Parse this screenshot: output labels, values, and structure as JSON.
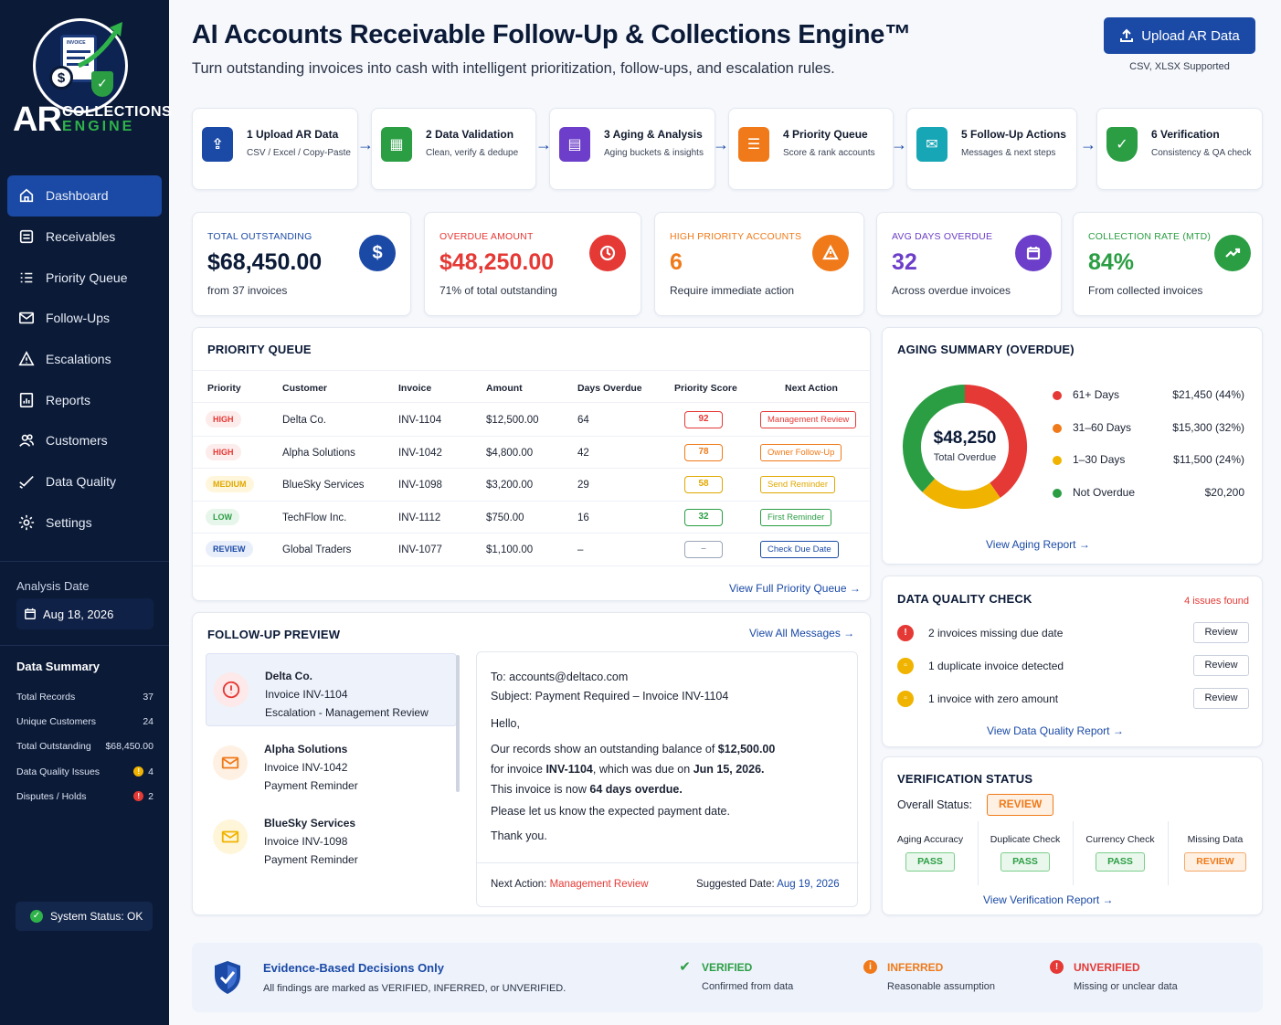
{
  "app": {
    "title": "AI Accounts Receivable Follow-Up & Collections Engine™",
    "subtitle": "Turn outstanding invoices into cash with intelligent prioritization, follow-ups, and escalation rules.",
    "upload_button": "Upload AR Data",
    "upload_note": "CSV, XLSX Supported"
  },
  "logo": {
    "ar": "AR",
    "collections": "COLLECTIONS",
    "engine": "ENGINE",
    "doc_label": "INVOICE"
  },
  "sidebar": {
    "items": [
      {
        "label": "Dashboard",
        "icon": "home-icon"
      },
      {
        "label": "Receivables",
        "icon": "receivables-icon"
      },
      {
        "label": "Priority Queue",
        "icon": "list-icon"
      },
      {
        "label": "Follow-Ups",
        "icon": "mail-icon"
      },
      {
        "label": "Escalations",
        "icon": "warning-icon"
      },
      {
        "label": "Reports",
        "icon": "report-icon"
      },
      {
        "label": "Customers",
        "icon": "users-icon"
      },
      {
        "label": "Data Quality",
        "icon": "check-icon"
      },
      {
        "label": "Settings",
        "icon": "gear-icon"
      }
    ],
    "active": "Dashboard",
    "analysis_label": "Analysis Date",
    "analysis_date": "Aug 18, 2026",
    "data_summary": {
      "title": "Data Summary",
      "rows": [
        {
          "label": "Total Records",
          "value": "37"
        },
        {
          "label": "Unique Customers",
          "value": "24"
        },
        {
          "label": "Total Outstanding",
          "value": "$68,450.00"
        },
        {
          "label": "Data Quality Issues",
          "value": "4"
        },
        {
          "label": "Disputes / Holds",
          "value": "2"
        }
      ]
    },
    "system_status": "System Status: OK"
  },
  "steps": [
    {
      "title": "1 Upload AR Data",
      "desc": "CSV / Excel / Copy-Paste",
      "color": "#1b4aa6",
      "icon": "upload-doc-icon"
    },
    {
      "title": "2 Data Validation",
      "desc": "Clean, verify & dedupe",
      "color": "#2b9e44",
      "icon": "spreadsheet-icon"
    },
    {
      "title": "3 Aging & Analysis",
      "desc": "Aging buckets & insights",
      "color": "#6c3ec9",
      "icon": "calendar-icon"
    },
    {
      "title": "4 Priority Queue",
      "desc": "Score & rank accounts",
      "color": "#f07a1a",
      "icon": "list-icon"
    },
    {
      "title": "5 Follow-Up Actions",
      "desc": "Messages & next steps",
      "color": "#17a6b5",
      "icon": "envelope-icon"
    },
    {
      "title": "6 Verification",
      "desc": "Consistency & QA check",
      "color": "#2b9e44",
      "icon": "shield-check-icon"
    }
  ],
  "kpis": [
    {
      "label": "TOTAL OUTSTANDING",
      "value": "$68,450.00",
      "sub": "from 37 invoices",
      "color": "#1b4aa6",
      "value_color": "#0b1a37",
      "icon": "dollar-icon"
    },
    {
      "label": "OVERDUE AMOUNT",
      "value": "$48,250.00",
      "sub": "71% of total outstanding",
      "color": "#e53935",
      "value_color": "#e53935",
      "icon": "clock-icon"
    },
    {
      "label": "HIGH PRIORITY ACCOUNTS",
      "value": "6",
      "sub": "Require immediate action",
      "color": "#f07a1a",
      "value_color": "#f07a1a",
      "icon": "alert-icon"
    },
    {
      "label": "AVG DAYS OVERDUE",
      "value": "32",
      "sub": "Across overdue invoices",
      "color": "#6c3ec9",
      "value_color": "#6c3ec9",
      "icon": "calendar-icon"
    },
    {
      "label": "COLLECTION RATE (MTD)",
      "value": "84%",
      "sub": "From collected invoices",
      "color": "#2b9e44",
      "value_color": "#2b9e44",
      "icon": "trend-up-icon"
    }
  ],
  "priority_queue": {
    "title": "PRIORITY QUEUE",
    "columns": [
      "Priority",
      "Customer",
      "Invoice",
      "Amount",
      "Days Overdue",
      "Priority Score",
      "Next Action"
    ],
    "rows": [
      {
        "priority": "HIGH",
        "customer": "Delta Co.",
        "invoice": "INV-1104",
        "amount": "$12,500.00",
        "days": "64",
        "score": "92",
        "action": "Management Review",
        "p_color": "#e53935",
        "p_bg": "#fdecec",
        "s_color": "#e53935",
        "a_color": "#e53935"
      },
      {
        "priority": "HIGH",
        "customer": "Alpha Solutions",
        "invoice": "INV-1042",
        "amount": "$4,800.00",
        "days": "42",
        "score": "78",
        "action": "Owner Follow-Up",
        "p_color": "#e53935",
        "p_bg": "#fdecec",
        "s_color": "#f07a1a",
        "a_color": "#f07a1a"
      },
      {
        "priority": "MEDIUM",
        "customer": "BlueSky Services",
        "invoice": "INV-1098",
        "amount": "$3,200.00",
        "days": "29",
        "score": "58",
        "action": "Send Reminder",
        "p_color": "#e0a800",
        "p_bg": "#fff6dc",
        "s_color": "#e0a800",
        "a_color": "#e0a800"
      },
      {
        "priority": "LOW",
        "customer": "TechFlow Inc.",
        "invoice": "INV-1112",
        "amount": "$750.00",
        "days": "16",
        "score": "32",
        "action": "First Reminder",
        "p_color": "#2b9e44",
        "p_bg": "#e7f6ea",
        "s_color": "#2b9e44",
        "a_color": "#2b9e44"
      },
      {
        "priority": "REVIEW",
        "customer": "Global Traders",
        "invoice": "INV-1077",
        "amount": "$1,100.00",
        "days": "–",
        "score": "–",
        "action": "Check Due Date",
        "p_color": "#1b4aa6",
        "p_bg": "#e8eefa",
        "s_color": "#9aa5b8",
        "a_color": "#1b4aa6"
      }
    ],
    "link": "View Full Priority Queue →"
  },
  "aging": {
    "title": "AGING SUMMARY (OVERDUE)",
    "total": "$48,250",
    "total_label": "Total Overdue",
    "buckets": [
      {
        "name": "61+ Days",
        "value": "$21,450 (44%)",
        "pct": 44,
        "color": "#e53935"
      },
      {
        "name": "31–60 Days",
        "value": "$15,300 (32%)",
        "pct": 32,
        "color": "#f07a1a"
      },
      {
        "name": "1–30 Days",
        "value": "$11,500 (24%)",
        "pct": 24,
        "color": "#f0b400"
      },
      {
        "name": "Not Overdue",
        "value": "$20,200",
        "pct": 0,
        "color": "#2b9e44"
      }
    ],
    "link": "View Aging Report →"
  },
  "followup": {
    "title": "FOLLOW-UP PREVIEW",
    "link": "View All Messages →",
    "items": [
      {
        "name": "Delta Co.",
        "invoice": "Invoice INV-1104",
        "type": "Escalation - Management Review",
        "icon": "alert-circle-icon",
        "color": "#e53935"
      },
      {
        "name": "Alpha Solutions",
        "invoice": "Invoice INV-1042",
        "type": "Payment Reminder",
        "icon": "envelope-icon",
        "color": "#f07a1a"
      },
      {
        "name": "BlueSky Services",
        "invoice": "Invoice INV-1098",
        "type": "Payment Reminder",
        "icon": "envelope-icon",
        "color": "#f0b400"
      }
    ],
    "email": {
      "to": "To: accounts@deltaco.com",
      "subject": "Subject: Payment Required – Invoice INV-1104",
      "greeting": "Hello,",
      "l1_a": "Our records show an outstanding balance of ",
      "l1_b": "$12,500.00",
      "l2_a": "for invoice ",
      "l2_b": "INV-1104",
      "l2_c": ", which was due on ",
      "l2_d": "Jun 15, 2026.",
      "l3_a": "This invoice is now ",
      "l3_b": "64 days overdue.",
      "l4": "Please let us know the expected payment date.",
      "l5": "Thank you.",
      "next_label": "Next Action:",
      "next_value": "Management Review",
      "date_label": "Suggested Date:",
      "date_value": "Aug 19, 2026"
    }
  },
  "data_quality": {
    "title": "DATA QUALITY CHECK",
    "issues": "4 issues found",
    "rows": [
      {
        "text": "2 invoices missing due date",
        "button": "Review",
        "color": "#e53935",
        "icon": "alert-icon"
      },
      {
        "text": "1 duplicate invoice detected",
        "button": "Review",
        "color": "#f0b400",
        "icon": "copy-icon"
      },
      {
        "text": "1 invoice with zero amount",
        "button": "Review",
        "color": "#f0b400",
        "icon": "copy-icon"
      }
    ],
    "link": "View Data Quality Report →"
  },
  "verification": {
    "title": "VERIFICATION STATUS",
    "overall_label": "Overall Status:",
    "overall": "REVIEW",
    "checks": [
      {
        "label": "Aging Accuracy",
        "status": "PASS"
      },
      {
        "label": "Duplicate Check",
        "status": "PASS"
      },
      {
        "label": "Currency Check",
        "status": "PASS"
      },
      {
        "label": "Missing Data",
        "status": "REVIEW"
      }
    ],
    "link": "View Verification Report →"
  },
  "evidence": {
    "title": "Evidence-Based Decisions Only",
    "desc": "All findings are marked as VERIFIED, INFERRED, or UNVERIFIED.",
    "items": [
      {
        "label": "VERIFIED",
        "desc": "Confirmed from data",
        "color": "#2b9e44",
        "icon": "check-icon"
      },
      {
        "label": "INFERRED",
        "desc": "Reasonable assumption",
        "color": "#f07a1a",
        "icon": "info-icon"
      },
      {
        "label": "UNVERIFIED",
        "desc": "Missing or unclear data",
        "color": "#e53935",
        "icon": "alert-icon"
      }
    ]
  }
}
